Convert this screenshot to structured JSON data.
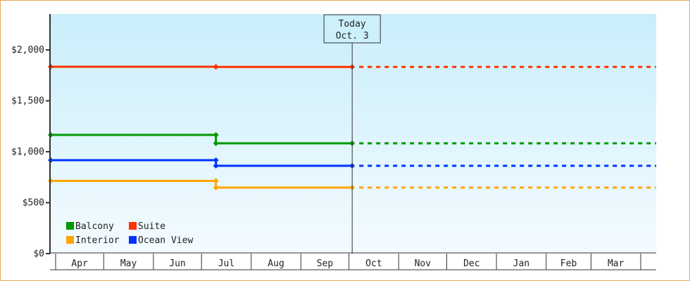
{
  "chart_data": {
    "type": "line",
    "step": true,
    "title": "",
    "xlabel": "",
    "ylabel": "",
    "ylim": [
      0,
      2345
    ],
    "y_ticks": [
      0,
      500,
      1000,
      1500,
      2000
    ],
    "y_tick_labels": [
      "$0",
      "$500",
      "$1,000",
      "$1,500",
      "$2,000"
    ],
    "x_categories": [
      "Apr",
      "May",
      "Jun",
      "Jul",
      "Aug",
      "Sep",
      "Oct",
      "Nov",
      "Dec",
      "Jan",
      "Feb",
      "Mar"
    ],
    "x_range": [
      "Mar 29",
      "Apr 10"
    ],
    "grid": false,
    "today_marker": {
      "line1": "Today",
      "line2": "Oct. 3",
      "date": "Oct 3"
    },
    "legend_position": "bottom-left",
    "series": [
      {
        "name": "Balcony",
        "color": "#009900",
        "points": [
          [
            "Mar 29",
            1166
          ],
          [
            "Jul 10",
            1166
          ],
          [
            "Jul 10",
            1083
          ],
          [
            "Oct 3",
            1083
          ]
        ],
        "projected_to": "Apr 10"
      },
      {
        "name": "Suite",
        "color": "#ff3300",
        "points": [
          [
            "Mar 29",
            1835
          ],
          [
            "Jul 10",
            1835
          ],
          [
            "Jul 10",
            1833
          ],
          [
            "Oct 3",
            1833
          ]
        ],
        "projected_to": "Apr 10"
      },
      {
        "name": "Interior",
        "color": "#ffa500",
        "points": [
          [
            "Mar 29",
            714
          ],
          [
            "Jul 10",
            714
          ],
          [
            "Jul 10",
            648
          ],
          [
            "Oct 3",
            648
          ]
        ],
        "projected_to": "Apr 10"
      },
      {
        "name": "Ocean View",
        "color": "#0033ff",
        "points": [
          [
            "Mar 29",
            917
          ],
          [
            "Jul 10",
            917
          ],
          [
            "Jul 10",
            862
          ],
          [
            "Oct 3",
            862
          ]
        ],
        "projected_to": "Apr 10"
      }
    ]
  }
}
